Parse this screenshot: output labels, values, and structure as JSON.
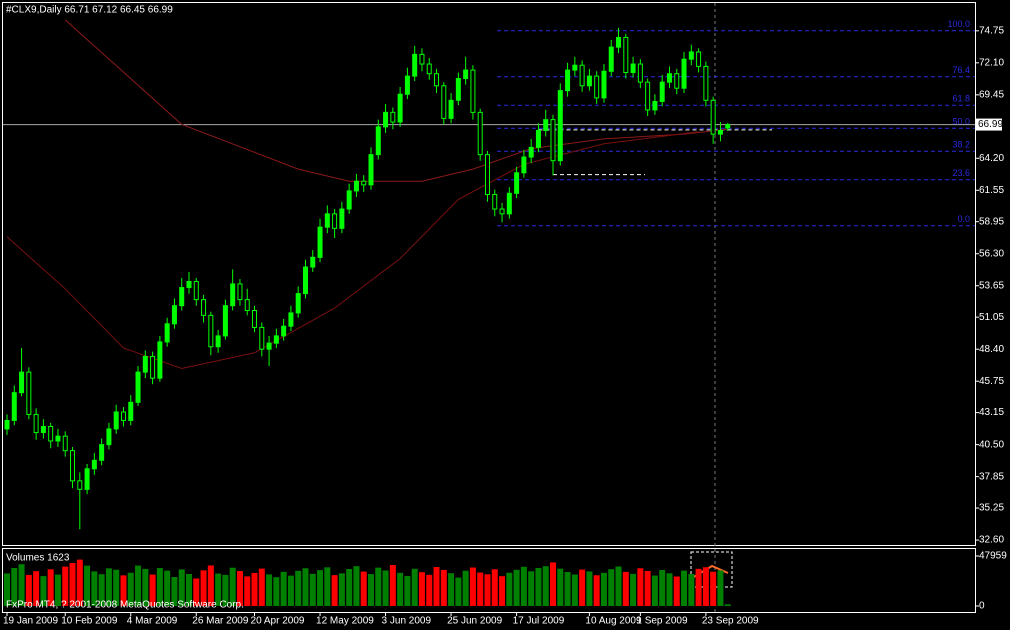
{
  "chart_data": {
    "type": "candlestick",
    "header": "#CLX9,Daily  66.71 67.12 66.45 66.99",
    "footer": "FxPro MT4, ? 2001-2008 MetaQuotes Software Corp.",
    "up_color": "#00ff00",
    "down_color": "#000000",
    "categories": [
      "19 Jan 2009",
      null,
      null,
      null,
      null,
      null,
      null,
      null,
      "10 Feb 2009",
      null,
      null,
      null,
      null,
      null,
      null,
      null,
      null,
      "4 Mar 2009",
      null,
      null,
      null,
      null,
      null,
      null,
      null,
      null,
      "26 Mar 2009",
      null,
      null,
      null,
      null,
      null,
      null,
      null,
      "20 Apr 2009",
      null,
      null,
      null,
      null,
      null,
      null,
      null,
      null,
      "12 May 2009",
      null,
      null,
      null,
      null,
      null,
      null,
      null,
      null,
      "3 Jun 2009",
      null,
      null,
      null,
      null,
      null,
      null,
      null,
      null,
      "25 Jun 2009",
      null,
      null,
      null,
      null,
      null,
      null,
      null,
      null,
      "17 Jul 2009",
      null,
      null,
      null,
      null,
      null,
      null,
      null,
      null,
      null,
      "10 Aug 2009",
      null,
      null,
      null,
      null,
      null,
      null,
      "1 Sep 2009",
      null,
      null,
      null,
      null,
      null,
      null,
      null,
      null,
      "23 Sep 2009",
      null,
      null,
      null
    ],
    "ohlc": [
      [
        41.8,
        43.0,
        41.3,
        42.5
      ],
      [
        42.5,
        45.4,
        42.1,
        44.8
      ],
      [
        44.8,
        48.5,
        44.5,
        46.5
      ],
      [
        46.5,
        46.9,
        42.6,
        43.0
      ],
      [
        43.0,
        43.5,
        40.9,
        41.5
      ],
      [
        41.5,
        42.6,
        41.0,
        42.0
      ],
      [
        42.0,
        42.3,
        40.2,
        40.8
      ],
      [
        40.8,
        41.8,
        40.3,
        41.2
      ],
      [
        41.2,
        41.6,
        39.5,
        40.0
      ],
      [
        40.0,
        40.3,
        36.9,
        37.5
      ],
      [
        37.5,
        38.2,
        33.5,
        36.8
      ],
      [
        36.8,
        38.9,
        36.4,
        38.5
      ],
      [
        38.5,
        39.8,
        38.0,
        39.2
      ],
      [
        39.2,
        41.0,
        38.8,
        40.5
      ],
      [
        40.5,
        42.3,
        40.1,
        41.8
      ],
      [
        41.8,
        43.8,
        41.4,
        43.2
      ],
      [
        43.2,
        43.6,
        42.0,
        42.5
      ],
      [
        42.5,
        44.6,
        42.1,
        44.0
      ],
      [
        44.0,
        47.0,
        43.7,
        46.5
      ],
      [
        46.5,
        48.3,
        46.0,
        47.8
      ],
      [
        47.8,
        48.2,
        45.5,
        46.0
      ],
      [
        46.0,
        49.5,
        45.7,
        49.0
      ],
      [
        49.0,
        51.0,
        48.6,
        50.5
      ],
      [
        50.5,
        52.6,
        50.1,
        52.0
      ],
      [
        52.0,
        54.3,
        51.6,
        53.5
      ],
      [
        53.5,
        54.8,
        53.0,
        54.0
      ],
      [
        54.0,
        54.3,
        52.0,
        52.5
      ],
      [
        52.5,
        52.9,
        50.6,
        51.2
      ],
      [
        51.2,
        51.5,
        47.9,
        48.6
      ],
      [
        48.6,
        50.0,
        48.1,
        49.5
      ],
      [
        49.5,
        52.5,
        49.2,
        52.0
      ],
      [
        52.0,
        55.0,
        51.6,
        53.8
      ],
      [
        53.8,
        54.2,
        52.0,
        52.5
      ],
      [
        52.5,
        53.4,
        51.2,
        51.6
      ],
      [
        51.6,
        52.0,
        49.8,
        50.2
      ],
      [
        50.2,
        50.6,
        47.8,
        48.4
      ],
      [
        48.4,
        49.5,
        47.0,
        48.9
      ],
      [
        48.9,
        50.1,
        48.5,
        49.5
      ],
      [
        49.5,
        50.9,
        49.1,
        50.3
      ],
      [
        50.3,
        52.0,
        49.9,
        51.4
      ],
      [
        51.4,
        53.6,
        51.0,
        53.0
      ],
      [
        53.0,
        55.8,
        52.6,
        55.2
      ],
      [
        55.2,
        56.6,
        54.8,
        56.0
      ],
      [
        56.0,
        59.2,
        55.6,
        58.5
      ],
      [
        58.5,
        60.3,
        58.0,
        59.6
      ],
      [
        59.6,
        60.0,
        57.6,
        58.4
      ],
      [
        58.4,
        60.6,
        58.0,
        60.0
      ],
      [
        60.0,
        62.1,
        59.6,
        61.5
      ],
      [
        61.5,
        62.9,
        61.0,
        62.3
      ],
      [
        62.3,
        62.8,
        61.4,
        62.0
      ],
      [
        62.0,
        65.1,
        61.6,
        64.5
      ],
      [
        64.5,
        67.4,
        64.1,
        66.8
      ],
      [
        66.8,
        68.7,
        66.3,
        68.0
      ],
      [
        68.0,
        68.4,
        66.6,
        67.2
      ],
      [
        67.2,
        70.1,
        66.8,
        69.5
      ],
      [
        69.5,
        71.7,
        69.1,
        71.0
      ],
      [
        71.0,
        73.5,
        70.6,
        72.8
      ],
      [
        72.8,
        73.3,
        71.4,
        72.0
      ],
      [
        72.0,
        72.5,
        70.7,
        71.2
      ],
      [
        71.2,
        71.6,
        69.6,
        70.2
      ],
      [
        70.2,
        70.5,
        67.0,
        67.5
      ],
      [
        67.5,
        69.6,
        67.1,
        69.0
      ],
      [
        69.0,
        71.3,
        68.6,
        70.8
      ],
      [
        70.8,
        72.6,
        70.3,
        71.5
      ],
      [
        71.5,
        71.9,
        67.4,
        68.0
      ],
      [
        68.0,
        68.3,
        64.0,
        64.5
      ],
      [
        64.5,
        64.8,
        60.6,
        61.2
      ],
      [
        61.2,
        61.6,
        59.4,
        60.0
      ],
      [
        60.0,
        60.5,
        58.9,
        59.6
      ],
      [
        59.6,
        61.8,
        59.2,
        61.3
      ],
      [
        61.3,
        63.5,
        60.9,
        63.0
      ],
      [
        63.0,
        64.9,
        62.6,
        64.3
      ],
      [
        64.3,
        65.8,
        63.8,
        65.1
      ],
      [
        65.1,
        67.1,
        64.7,
        66.5
      ],
      [
        66.5,
        68.2,
        66.0,
        67.4
      ],
      [
        67.4,
        67.8,
        62.8,
        64.0
      ],
      [
        64.0,
        70.4,
        63.6,
        69.8
      ],
      [
        69.8,
        72.1,
        69.3,
        71.5
      ],
      [
        71.5,
        72.6,
        71.0,
        71.9
      ],
      [
        71.9,
        72.3,
        69.7,
        70.2
      ],
      [
        70.2,
        71.6,
        69.8,
        71.0
      ],
      [
        71.0,
        71.4,
        68.7,
        69.2
      ],
      [
        69.2,
        72.0,
        68.8,
        71.4
      ],
      [
        71.4,
        74.0,
        71.0,
        73.4
      ],
      [
        73.4,
        75.0,
        72.9,
        74.2
      ],
      [
        74.2,
        74.5,
        70.8,
        71.3
      ],
      [
        71.3,
        72.6,
        70.9,
        72.0
      ],
      [
        72.0,
        72.4,
        70.0,
        70.5
      ],
      [
        70.5,
        70.8,
        67.7,
        68.2
      ],
      [
        68.2,
        69.5,
        67.8,
        68.9
      ],
      [
        68.9,
        71.1,
        68.5,
        70.5
      ],
      [
        70.5,
        71.8,
        70.0,
        71.2
      ],
      [
        71.2,
        71.6,
        69.5,
        70.0
      ],
      [
        70.0,
        73.0,
        69.6,
        72.4
      ],
      [
        72.4,
        73.6,
        71.9,
        73.0
      ],
      [
        73.0,
        73.3,
        71.3,
        71.8
      ],
      [
        71.8,
        72.2,
        68.5,
        69.0
      ],
      [
        69.0,
        69.3,
        65.4,
        66.2
      ],
      [
        66.2,
        67.2,
        65.6,
        66.5
      ],
      [
        66.71,
        67.12,
        66.45,
        66.99
      ]
    ],
    "ylim": [
      32.44,
      77.3
    ],
    "yticks": [
      {
        "value": 74.75,
        "label": "74.75"
      },
      {
        "value": 72.1,
        "label": "72.10"
      },
      {
        "value": 69.45,
        "label": "69.45"
      },
      {
        "value": 64.2,
        "label": "64.20"
      },
      {
        "value": 61.55,
        "label": "61.55"
      },
      {
        "value": 58.95,
        "label": "58.95"
      },
      {
        "value": 56.3,
        "label": "56.30"
      },
      {
        "value": 53.65,
        "label": "53.65"
      },
      {
        "value": 51.05,
        "label": "51.05"
      },
      {
        "value": 48.4,
        "label": "48.40"
      },
      {
        "value": 45.75,
        "label": "45.75"
      },
      {
        "value": 43.15,
        "label": "43.15"
      },
      {
        "value": 40.5,
        "label": "40.50"
      },
      {
        "value": 37.85,
        "label": "37.85"
      },
      {
        "value": 35.25,
        "label": "35.25"
      },
      {
        "value": 32.6,
        "label": "32.60"
      }
    ],
    "ma": [
      {
        "color": "#8b1a1a",
        "x": [
          8,
          24,
          40,
          47,
          57,
          64,
          72,
          82,
          93,
          99
        ],
        "values": [
          75.65,
          67.0,
          63.3,
          62.3,
          62.3,
          63.3,
          65.0,
          65.8,
          66.2,
          66.6
        ]
      },
      {
        "color": "#7a1010",
        "x": [
          0,
          8,
          16,
          24,
          34,
          45,
          54,
          62,
          71,
          82,
          95
        ],
        "values": [
          57.7,
          53.4,
          48.5,
          46.8,
          48.1,
          51.8,
          55.9,
          60.8,
          63.7,
          65.4,
          66.4
        ]
      }
    ],
    "fib": {
      "low": 58.62,
      "high": 74.75,
      "color": "#2a2ae0",
      "levels": [
        {
          "value": 100,
          "label": "100.0"
        },
        {
          "value": 76.4,
          "label": "76.4"
        },
        {
          "value": 61.8,
          "label": "61.8"
        },
        {
          "value": 50,
          "label": "50.0"
        },
        {
          "value": 38.2,
          "label": "38.2"
        },
        {
          "value": 23.6,
          "label": "23.6"
        },
        {
          "value": 0,
          "label": "0.0"
        }
      ]
    },
    "dashed_levels": [
      66.55,
      62.85
    ],
    "volume": {
      "title": "Volumes 1623",
      "up_color": "#008000",
      "down_color": "#ff0000",
      "ylim": [
        -5755,
        55631
      ],
      "yticks": [
        47959,
        0
      ],
      "values": [
        31200,
        36500,
        40100,
        29800,
        33400,
        28700,
        35200,
        30100,
        37800,
        41200,
        44500,
        38700,
        33200,
        30500,
        36100,
        34800,
        29400,
        31900,
        38800,
        35600,
        30200,
        36400,
        33900,
        27800,
        35100,
        30700,
        26400,
        34200,
        38900,
        31100,
        29800,
        36700,
        33500,
        28400,
        31700,
        35900,
        30300,
        27600,
        32800,
        29100,
        33700,
        36200,
        30900,
        34400,
        37100,
        29600,
        31300,
        35500,
        38200,
        33000,
        30600,
        36800,
        34100,
        39300,
        31800,
        28800,
        35700,
        32400,
        29900,
        37400,
        34600,
        31500,
        27300,
        33800,
        36900,
        32100,
        30400,
        35200,
        28600,
        31900,
        34700,
        37600,
        33300,
        36400,
        38100,
        41800,
        35800,
        32600,
        30200,
        34900,
        33100,
        29500,
        31800,
        35300,
        37900,
        32700,
        30800,
        36200,
        33600,
        29200,
        34500,
        31400,
        28300,
        33900,
        30700,
        35600,
        37200,
        32900,
        34100,
        1623
      ]
    }
  }
}
